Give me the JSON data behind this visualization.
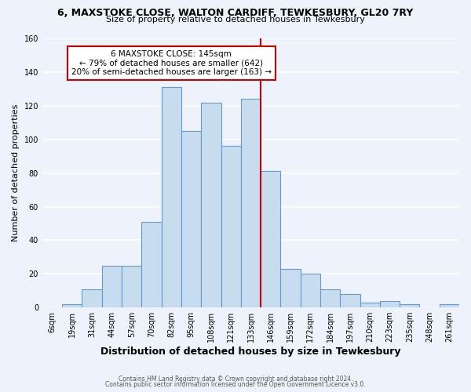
{
  "title_line1": "6, MAXSTOKE CLOSE, WALTON CARDIFF, TEWKESBURY, GL20 7RY",
  "title_line2": "Size of property relative to detached houses in Tewkesbury",
  "xlabel": "Distribution of detached houses by size in Tewkesbury",
  "ylabel": "Number of detached properties",
  "bar_labels": [
    "6sqm",
    "19sqm",
    "31sqm",
    "44sqm",
    "57sqm",
    "70sqm",
    "82sqm",
    "95sqm",
    "108sqm",
    "121sqm",
    "133sqm",
    "146sqm",
    "159sqm",
    "172sqm",
    "184sqm",
    "197sqm",
    "210sqm",
    "223sqm",
    "235sqm",
    "248sqm",
    "261sqm"
  ],
  "bar_values": [
    0,
    2,
    11,
    25,
    25,
    51,
    131,
    105,
    122,
    96,
    124,
    81,
    23,
    20,
    11,
    8,
    3,
    4,
    2,
    0,
    2
  ],
  "bar_color": "#c8dcf0",
  "bar_edge_color": "#6699cc",
  "vline_color": "#cc0000",
  "ylim": [
    0,
    160
  ],
  "yticks": [
    0,
    20,
    40,
    60,
    80,
    100,
    120,
    140,
    160
  ],
  "annotation_title": "6 MAXSTOKE CLOSE: 145sqm",
  "annotation_line1": "← 79% of detached houses are smaller (642)",
  "annotation_line2": "20% of semi-detached houses are larger (163) →",
  "annotation_box_color": "#ffffff",
  "annotation_box_edge": "#cc0000",
  "footer_line1": "Contains HM Land Registry data © Crown copyright and database right 2024.",
  "footer_line2": "Contains public sector information licensed under the Open Government Licence v3.0.",
  "background_color": "#eef3fb",
  "grid_color": "#ffffff"
}
